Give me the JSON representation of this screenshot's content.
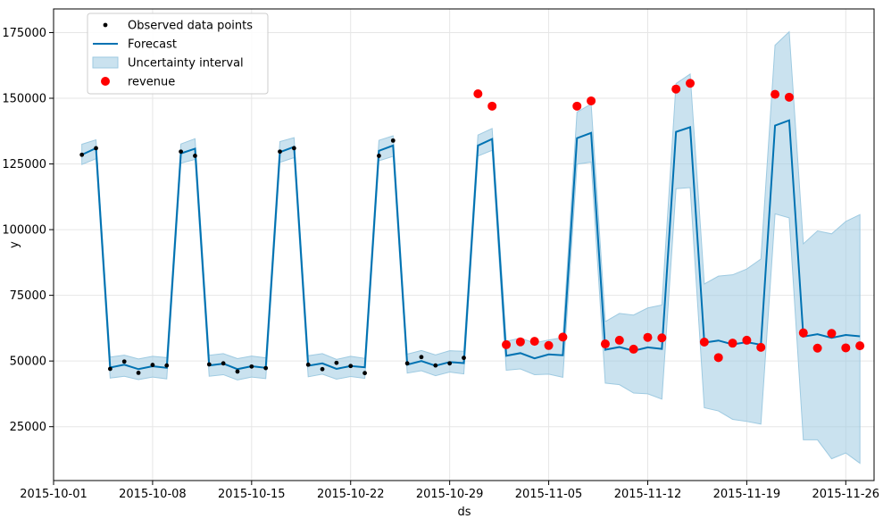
{
  "chart_data": {
    "type": "line",
    "title": "",
    "xlabel": "ds",
    "ylabel": "y",
    "x_is_date": true,
    "xlim": [
      "2015-10-01",
      "2015-11-28"
    ],
    "ylim": [
      4500,
      184000
    ],
    "grid": true,
    "legend_position": "top-left",
    "x_ticks": [
      "2015-10-01",
      "2015-10-08",
      "2015-10-15",
      "2015-10-22",
      "2015-10-29",
      "2015-11-05",
      "2015-11-12",
      "2015-11-19",
      "2015-11-26"
    ],
    "x_tick_labels": [
      "2015-10-01",
      "2015-10-08",
      "2015-10-15",
      "2015-10-22",
      "2015-10-29",
      "2015-11-05",
      "2015-11-12",
      "2015-11-19",
      "2015-11-26"
    ],
    "y_ticks": [
      25000,
      50000,
      75000,
      100000,
      125000,
      150000,
      175000
    ],
    "y_tick_labels": [
      "25000",
      "50000",
      "75000",
      "100000",
      "125000",
      "150000",
      "175000"
    ],
    "legend": [
      {
        "label": "Observed data points",
        "kind": "dot"
      },
      {
        "label": "Forecast",
        "kind": "line"
      },
      {
        "label": "Uncertainty interval",
        "kind": "band"
      },
      {
        "label": "revenue",
        "kind": "bigdot"
      }
    ],
    "colors": {
      "forecast": "#0072b2",
      "band": "#9ecae1",
      "observed": "#000000",
      "revenue": "#ff0000",
      "grid": "#e6e6e6"
    },
    "forecast": {
      "x": [
        "2015-10-03",
        "2015-10-04",
        "2015-10-05",
        "2015-10-06",
        "2015-10-07",
        "2015-10-08",
        "2015-10-09",
        "2015-10-10",
        "2015-10-11",
        "2015-10-12",
        "2015-10-13",
        "2015-10-14",
        "2015-10-15",
        "2015-10-16",
        "2015-10-17",
        "2015-10-18",
        "2015-10-19",
        "2015-10-20",
        "2015-10-21",
        "2015-10-22",
        "2015-10-23",
        "2015-10-24",
        "2015-10-25",
        "2015-10-26",
        "2015-10-27",
        "2015-10-28",
        "2015-10-29",
        "2015-10-30",
        "2015-10-31",
        "2015-11-01",
        "2015-11-02",
        "2015-11-03",
        "2015-11-04",
        "2015-11-05",
        "2015-11-06",
        "2015-11-07",
        "2015-11-08",
        "2015-11-09",
        "2015-11-10",
        "2015-11-11",
        "2015-11-12",
        "2015-11-13",
        "2015-11-14",
        "2015-11-15",
        "2015-11-16",
        "2015-11-17",
        "2015-11-18",
        "2015-11-19",
        "2015-11-20",
        "2015-11-21",
        "2015-11-22",
        "2015-11-23",
        "2015-11-24",
        "2015-11-25",
        "2015-11-26",
        "2015-11-27"
      ],
      "yhat": [
        128500,
        131000,
        47500,
        48600,
        46900,
        48000,
        47400,
        129000,
        130800,
        48300,
        49000,
        46900,
        48000,
        47400,
        129500,
        131500,
        48200,
        49100,
        47000,
        48100,
        47600,
        130000,
        132000,
        48600,
        50000,
        48200,
        49600,
        49200,
        132000,
        134500,
        52000,
        53000,
        51000,
        52500,
        52200,
        134800,
        136800,
        54300,
        55300,
        53900,
        55200,
        54600,
        137200,
        139000,
        57000,
        57800,
        56300,
        57200,
        56200,
        139600,
        141600,
        59300,
        60200,
        58800,
        59900,
        59400
      ],
      "lower": [
        124800,
        127000,
        43500,
        44200,
        42900,
        43900,
        43200,
        125300,
        126700,
        44200,
        44800,
        42800,
        43900,
        43300,
        125600,
        127400,
        44000,
        45000,
        43100,
        44100,
        43400,
        126200,
        127900,
        45400,
        46300,
        44400,
        45800,
        45100,
        128000,
        130200,
        46500,
        47000,
        44800,
        45000,
        43800,
        124900,
        125700,
        41600,
        41000,
        37800,
        37500,
        35500,
        115600,
        116000,
        32200,
        31000,
        27800,
        27000,
        26000,
        106000,
        104500,
        20000,
        20000,
        12800,
        15000,
        11100
      ],
      "upper": [
        132500,
        134200,
        51500,
        52200,
        50800,
        51800,
        51300,
        132600,
        134600,
        52200,
        52800,
        50900,
        51900,
        51200,
        133500,
        135000,
        52000,
        52800,
        50600,
        51800,
        51000,
        134000,
        135700,
        52600,
        54000,
        52300,
        53900,
        53700,
        136000,
        138500,
        57500,
        58700,
        56900,
        58000,
        58900,
        144700,
        147800,
        65000,
        68100,
        67500,
        70200,
        71300,
        155600,
        159200,
        79300,
        82300,
        82800,
        85000,
        88800,
        170200,
        175300,
        94600,
        99500,
        98400,
        103100,
        105700
      ]
    },
    "observed": {
      "x": [
        "2015-10-03",
        "2015-10-04",
        "2015-10-05",
        "2015-10-06",
        "2015-10-07",
        "2015-10-08",
        "2015-10-09",
        "2015-10-10",
        "2015-10-11",
        "2015-10-12",
        "2015-10-13",
        "2015-10-14",
        "2015-10-15",
        "2015-10-16",
        "2015-10-17",
        "2015-10-18",
        "2015-10-19",
        "2015-10-20",
        "2015-10-21",
        "2015-10-22",
        "2015-10-23",
        "2015-10-24",
        "2015-10-25",
        "2015-10-26",
        "2015-10-27",
        "2015-10-28",
        "2015-10-29",
        "2015-10-30"
      ],
      "y": [
        128500,
        131000,
        47000,
        49800,
        45500,
        48500,
        48300,
        129700,
        128100,
        48700,
        49100,
        46000,
        47900,
        47300,
        129700,
        131000,
        48600,
        46900,
        49300,
        48100,
        45400,
        128100,
        133900,
        49100,
        51500,
        48300,
        49100,
        51200
      ]
    },
    "revenue": {
      "x": [
        "2015-10-31",
        "2015-11-01",
        "2015-11-02",
        "2015-11-03",
        "2015-11-04",
        "2015-11-05",
        "2015-11-06",
        "2015-11-07",
        "2015-11-08",
        "2015-11-09",
        "2015-11-10",
        "2015-11-11",
        "2015-11-12",
        "2015-11-13",
        "2015-11-14",
        "2015-11-15",
        "2015-11-16",
        "2015-11-17",
        "2015-11-18",
        "2015-11-19",
        "2015-11-20",
        "2015-11-21",
        "2015-11-22",
        "2015-11-23",
        "2015-11-24",
        "2015-11-25",
        "2015-11-26",
        "2015-11-27"
      ],
      "y": [
        151700,
        147000,
        56200,
        57300,
        57500,
        55900,
        59100,
        147000,
        149000,
        56500,
        57900,
        54500,
        59000,
        58800,
        153500,
        155700,
        57200,
        51300,
        56800,
        57900,
        55200,
        151500,
        150400,
        60700,
        54900,
        60500,
        55000,
        55800
      ]
    }
  }
}
